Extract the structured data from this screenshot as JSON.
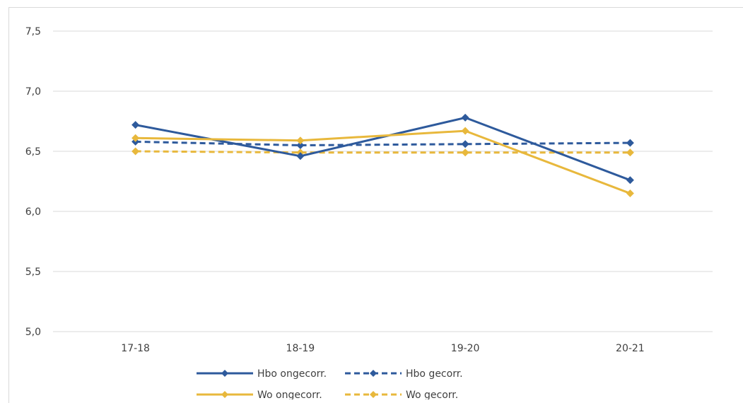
{
  "chart_data": {
    "type": "line",
    "categories": [
      "17-18",
      "18-19",
      "19-20",
      "20-21"
    ],
    "ylim": [
      5.0,
      7.5
    ],
    "y_ticks": [
      "5,0",
      "5,5",
      "6,0",
      "6,5",
      "7,0",
      "7,5"
    ],
    "y_tick_values": [
      5.0,
      5.5,
      6.0,
      6.5,
      7.0,
      7.5
    ],
    "grid": true,
    "legend_position": "bottom",
    "series": [
      {
        "name": "Hbo ongecorr.",
        "values": [
          6.72,
          6.46,
          6.78,
          6.26
        ],
        "color": "#2e5a9c",
        "dash": "solid"
      },
      {
        "name": "Hbo gecorr.",
        "values": [
          6.58,
          6.55,
          6.56,
          6.57
        ],
        "color": "#2e5a9c",
        "dash": "dashed"
      },
      {
        "name": "Wo ongecorr.",
        "values": [
          6.61,
          6.59,
          6.67,
          6.15
        ],
        "color": "#e8b83c",
        "dash": "solid"
      },
      {
        "name": "Wo gecorr.",
        "values": [
          6.5,
          6.49,
          6.49,
          6.49
        ],
        "color": "#e8b83c",
        "dash": "dashed"
      }
    ]
  }
}
